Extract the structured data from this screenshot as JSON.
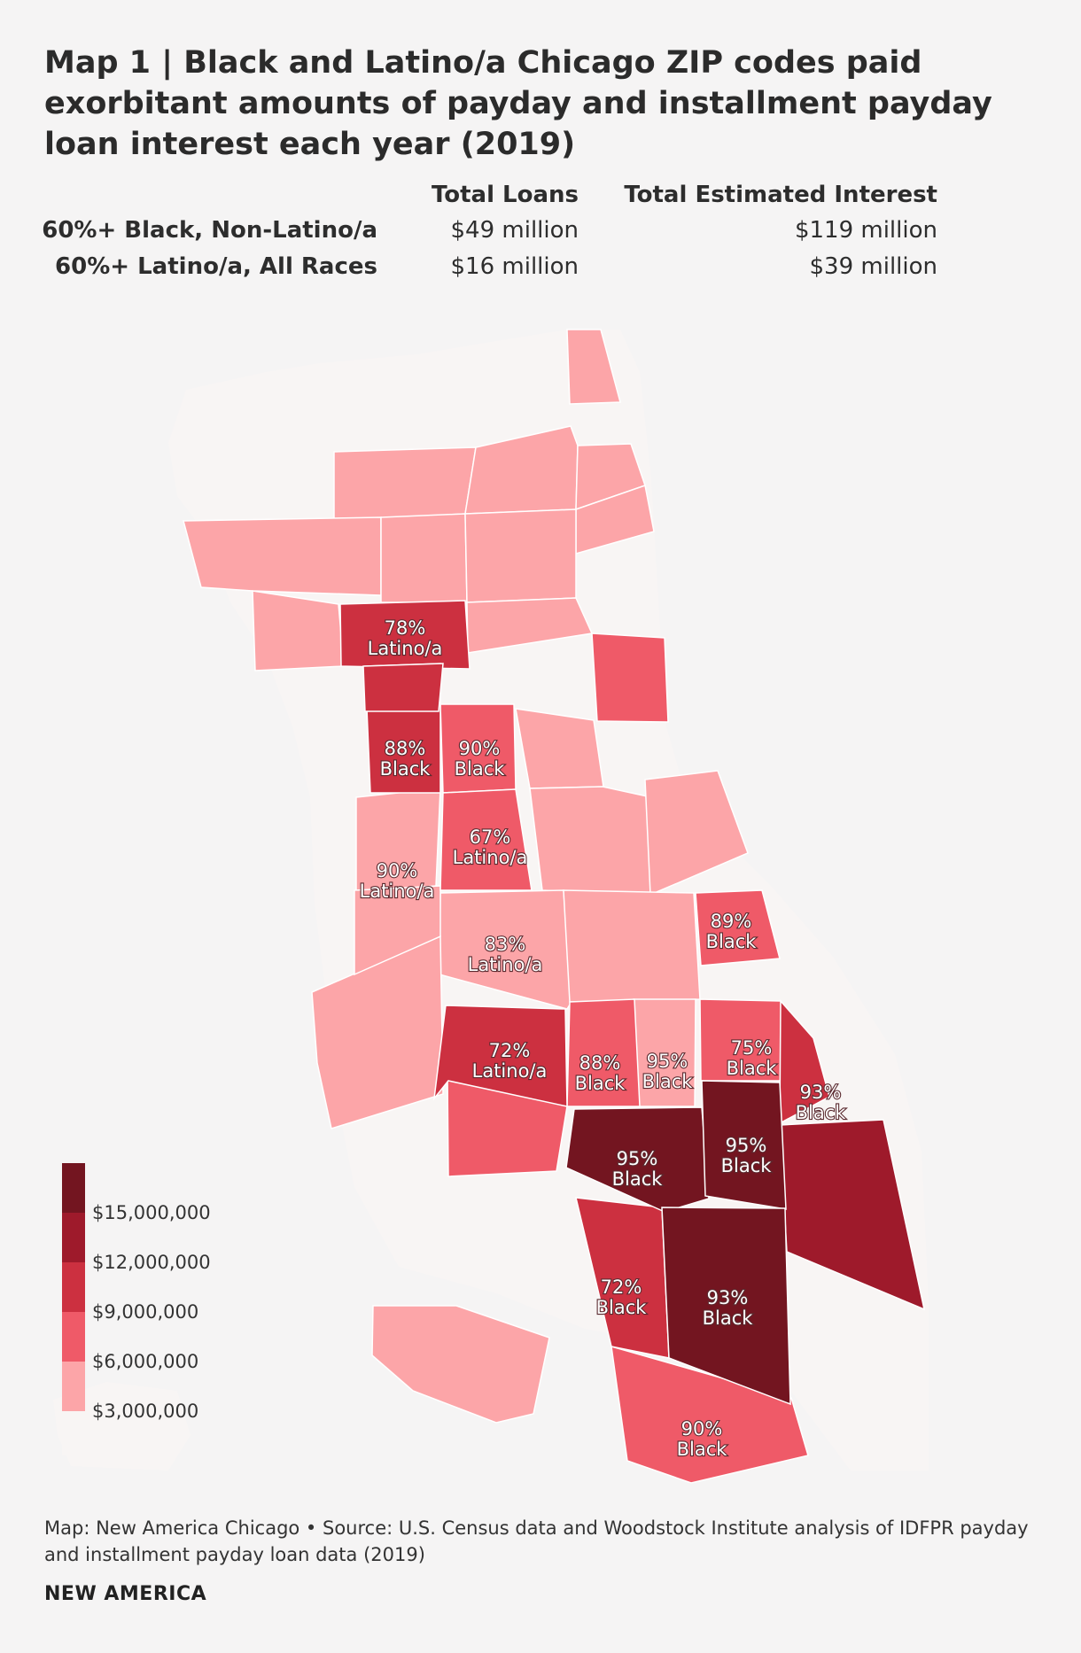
{
  "title": "Map 1 | Black and Latino/a Chicago ZIP codes paid exorbitant amounts of payday and installment payday loan interest each year (2019)",
  "summary": {
    "col_loans": "Total Loans",
    "col_interest": "Total Estimated Interest",
    "rows": [
      {
        "label": "60%+ Black, Non-Latino/a",
        "loans": "$49 million",
        "interest": "$119 million"
      },
      {
        "label": "60%+ Latino/a, All Races",
        "loans": "$16 million",
        "interest": "$39 million"
      }
    ]
  },
  "colors": {
    "tier1": "#fca5a8",
    "tier2": "#ef5a68",
    "tier3": "#cc3040",
    "tier4": "#9e1a2b",
    "tier5": "#731520",
    "outline": "#f8f5f4"
  },
  "legend": {
    "labels": [
      "$15,000,000",
      "$12,000,000",
      "$9,000,000",
      "$6,000,000",
      "$3,000,000"
    ]
  },
  "zip_labels": [
    {
      "pct": "78%",
      "group": "Latino/a"
    },
    {
      "pct": "88%",
      "group": "Black"
    },
    {
      "pct": "90%",
      "group": "Black"
    },
    {
      "pct": "67%",
      "group": "Latino/a"
    },
    {
      "pct": "90%",
      "group": "Latino/a"
    },
    {
      "pct": "83%",
      "group": "Latino/a"
    },
    {
      "pct": "89%",
      "group": "Black"
    },
    {
      "pct": "72%",
      "group": "Latino/a"
    },
    {
      "pct": "88%",
      "group": "Black"
    },
    {
      "pct": "95%",
      "group": "Black"
    },
    {
      "pct": "75%",
      "group": "Black"
    },
    {
      "pct": "93%",
      "group": "Black"
    },
    {
      "pct": "95%",
      "group": "Black"
    },
    {
      "pct": "95%",
      "group": "Black"
    },
    {
      "pct": "72%",
      "group": "Black"
    },
    {
      "pct": "93%",
      "group": "Black"
    },
    {
      "pct": "90%",
      "group": "Black"
    }
  ],
  "footer": {
    "source": "Map: New America Chicago • Source: U.S. Census data and Woodstock Institute analysis of IDFPR payday and installment payday loan data (2019)",
    "brand": "NEW AMERICA"
  }
}
